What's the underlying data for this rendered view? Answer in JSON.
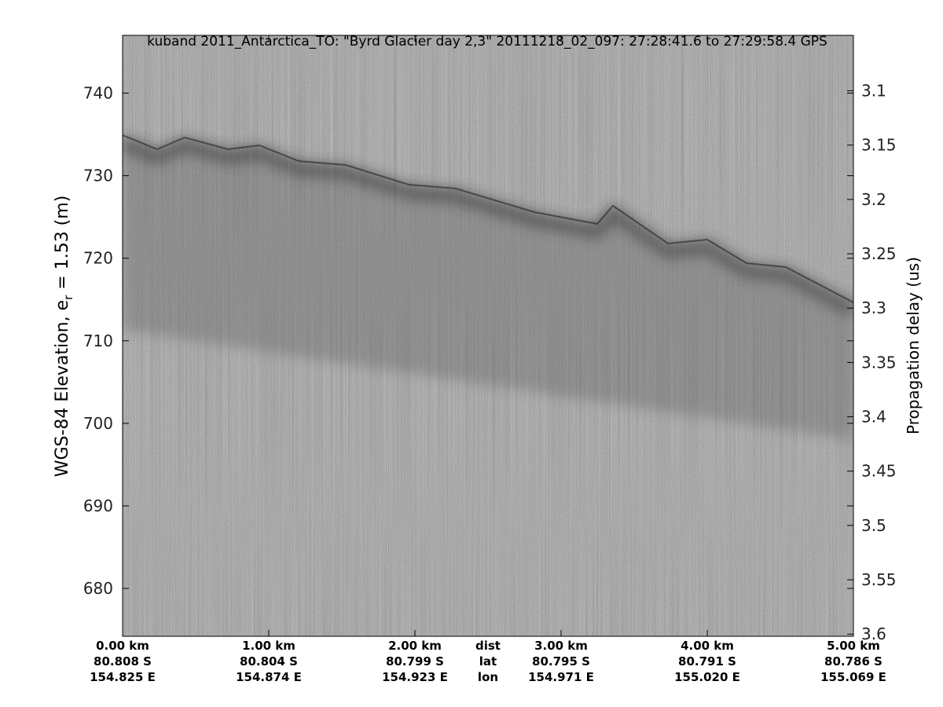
{
  "chart_data": {
    "type": "echogram",
    "title": "kuband 2011_Antarctica_TO: \"Byrd Glacier day 2,3\"  20111218_02_097: 27:28:41.6 to 27:29:58.4 GPS",
    "ylabel": {
      "text": "WGS-84 Elevation, e",
      "sub": "r",
      "rest": " = 1.53 (m)"
    },
    "y2label": "Propagation delay (us)",
    "xlim": [
      0,
      5
    ],
    "xticks": [
      {
        "value": 0,
        "label": "0.00 km"
      },
      {
        "value": 1,
        "label": "1.00 km"
      },
      {
        "value": 2,
        "label": "2.00 km"
      },
      {
        "value": 3,
        "label": "3.00 km"
      },
      {
        "value": 4,
        "label": "4.00 km"
      },
      {
        "value": 5,
        "label": "5.00 km"
      }
    ],
    "lat_labels": [
      "80.808 S",
      "80.804 S",
      "80.799 S",
      "80.795 S",
      "80.791 S",
      "80.786 S"
    ],
    "lon_labels": [
      "154.825 E",
      "154.874 E",
      "154.923 E",
      "154.971 E",
      "155.020 E",
      "155.069 E"
    ],
    "row_labels": [
      "dist",
      "lat",
      "lon"
    ],
    "ylim": [
      674.2,
      747.0
    ],
    "yticks": [
      680,
      690,
      700,
      710,
      720,
      730,
      740
    ],
    "y2lim": [
      3.602,
      3.049
    ],
    "y2ticks": [
      3.1,
      3.15,
      3.2,
      3.25,
      3.3,
      3.35,
      3.4,
      3.45,
      3.5,
      3.55,
      3.6
    ]
  }
}
